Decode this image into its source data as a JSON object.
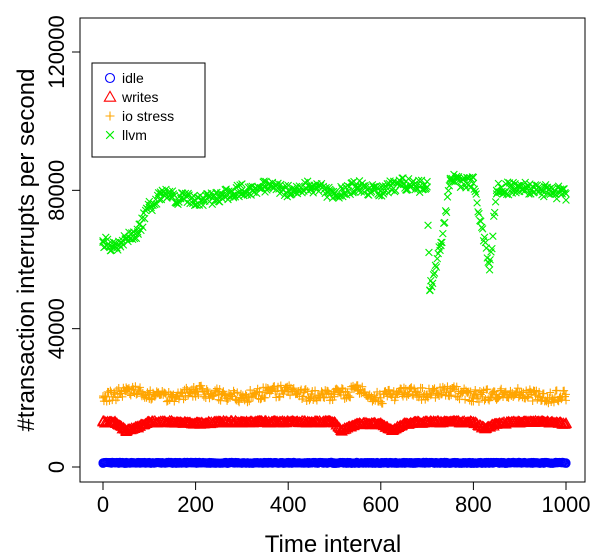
{
  "chart_data": {
    "type": "scatter",
    "title": "",
    "xlabel": "Time interval",
    "ylabel": "#transaction interrupts per second",
    "xlim": [
      0,
      1000
    ],
    "ylim": [
      0,
      120000
    ],
    "x_ticks": [
      "0",
      "200",
      "400",
      "600",
      "800",
      "1000"
    ],
    "y_ticks": [
      "0",
      "40000",
      "80000",
      "120000"
    ],
    "legend_position": "top-left",
    "grid": false,
    "series": [
      {
        "name": "idle",
        "marker": "circle",
        "color": "#0000ff",
        "x": [
          0,
          100,
          200,
          300,
          400,
          500,
          600,
          700,
          800,
          900,
          1000
        ],
        "y": [
          1200,
          1200,
          1200,
          1200,
          1200,
          1200,
          1200,
          1200,
          1200,
          1200,
          1200
        ]
      },
      {
        "name": "writes",
        "marker": "triangle",
        "color": "#ff0000",
        "x": [
          0,
          25,
          50,
          75,
          100,
          150,
          200,
          250,
          300,
          350,
          400,
          450,
          500,
          515,
          550,
          600,
          625,
          650,
          700,
          750,
          800,
          825,
          850,
          900,
          950,
          1000
        ],
        "y": [
          13000,
          13000,
          10500,
          11500,
          13000,
          13000,
          12500,
          13000,
          13000,
          13000,
          13000,
          13000,
          13000,
          10500,
          12500,
          12500,
          10500,
          12500,
          13000,
          13000,
          13000,
          11000,
          12500,
          13000,
          13000,
          12500
        ]
      },
      {
        "name": "io stress",
        "marker": "plus",
        "color": "#ffa500",
        "x": [
          0,
          50,
          100,
          150,
          200,
          250,
          300,
          350,
          400,
          450,
          500,
          550,
          600,
          650,
          700,
          750,
          800,
          850,
          900,
          950,
          1000
        ],
        "y": [
          20000,
          22000,
          21000,
          20500,
          22000,
          21000,
          20000,
          21500,
          22000,
          20500,
          21000,
          22000,
          20000,
          21500,
          21000,
          22000,
          20500,
          21000,
          21500,
          20000,
          21000
        ]
      },
      {
        "name": "llvm",
        "marker": "x",
        "color": "#00ee00",
        "x": [
          0,
          25,
          50,
          75,
          100,
          125,
          150,
          200,
          250,
          300,
          350,
          400,
          450,
          500,
          550,
          600,
          650,
          700,
          706,
          730,
          750,
          800,
          835,
          850,
          900,
          950,
          1000
        ],
        "y": [
          65000,
          64000,
          66000,
          68000,
          75000,
          79000,
          78000,
          77000,
          78000,
          80000,
          81000,
          80000,
          81000,
          79000,
          81000,
          80000,
          82000,
          81000,
          51000,
          64000,
          83000,
          82000,
          57000,
          80000,
          81000,
          80000,
          79000
        ]
      }
    ]
  }
}
